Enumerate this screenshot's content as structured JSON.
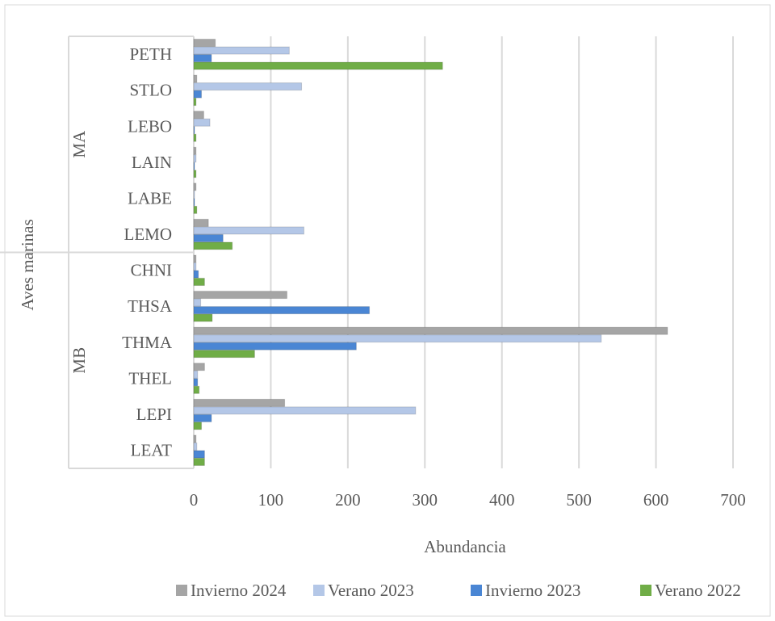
{
  "chart_data": {
    "type": "hbar",
    "x_label": "Abundancia",
    "y_label": "Aves marinas",
    "categories": [
      "PETH",
      "STLO",
      "LEBO",
      "LAIN",
      "LABE",
      "LEMO",
      "CHNI",
      "THSA",
      "THMA",
      "THEL",
      "LEPI",
      "LEAT"
    ],
    "groups": [
      {
        "name": "MA",
        "size": 6
      },
      {
        "name": "MB",
        "size": 6
      }
    ],
    "series": [
      {
        "name": "Invierno 2024",
        "color": "#a5a5a5",
        "values": [
          28,
          4,
          13,
          3,
          3,
          19,
          3,
          121,
          615,
          14,
          118,
          3
        ]
      },
      {
        "name": "Verano 2023",
        "color": "#b4c7e7",
        "values": [
          124,
          140,
          21,
          3,
          1,
          143,
          3,
          9,
          529,
          5,
          288,
          4
        ]
      },
      {
        "name": "Invierno 2023",
        "color": "#4a86d4",
        "values": [
          23,
          10,
          1,
          1,
          1,
          38,
          6,
          228,
          211,
          5,
          23,
          14
        ]
      },
      {
        "name": "Verano 2022",
        "color": "#70ad47",
        "values": [
          323,
          3,
          3,
          3,
          4,
          50,
          14,
          24,
          79,
          7,
          10,
          14
        ]
      }
    ],
    "xlim": [
      0,
      700
    ],
    "xticks": [
      0,
      100,
      200,
      300,
      400,
      500,
      600,
      700
    ],
    "grid": true,
    "legend": "bottom"
  }
}
